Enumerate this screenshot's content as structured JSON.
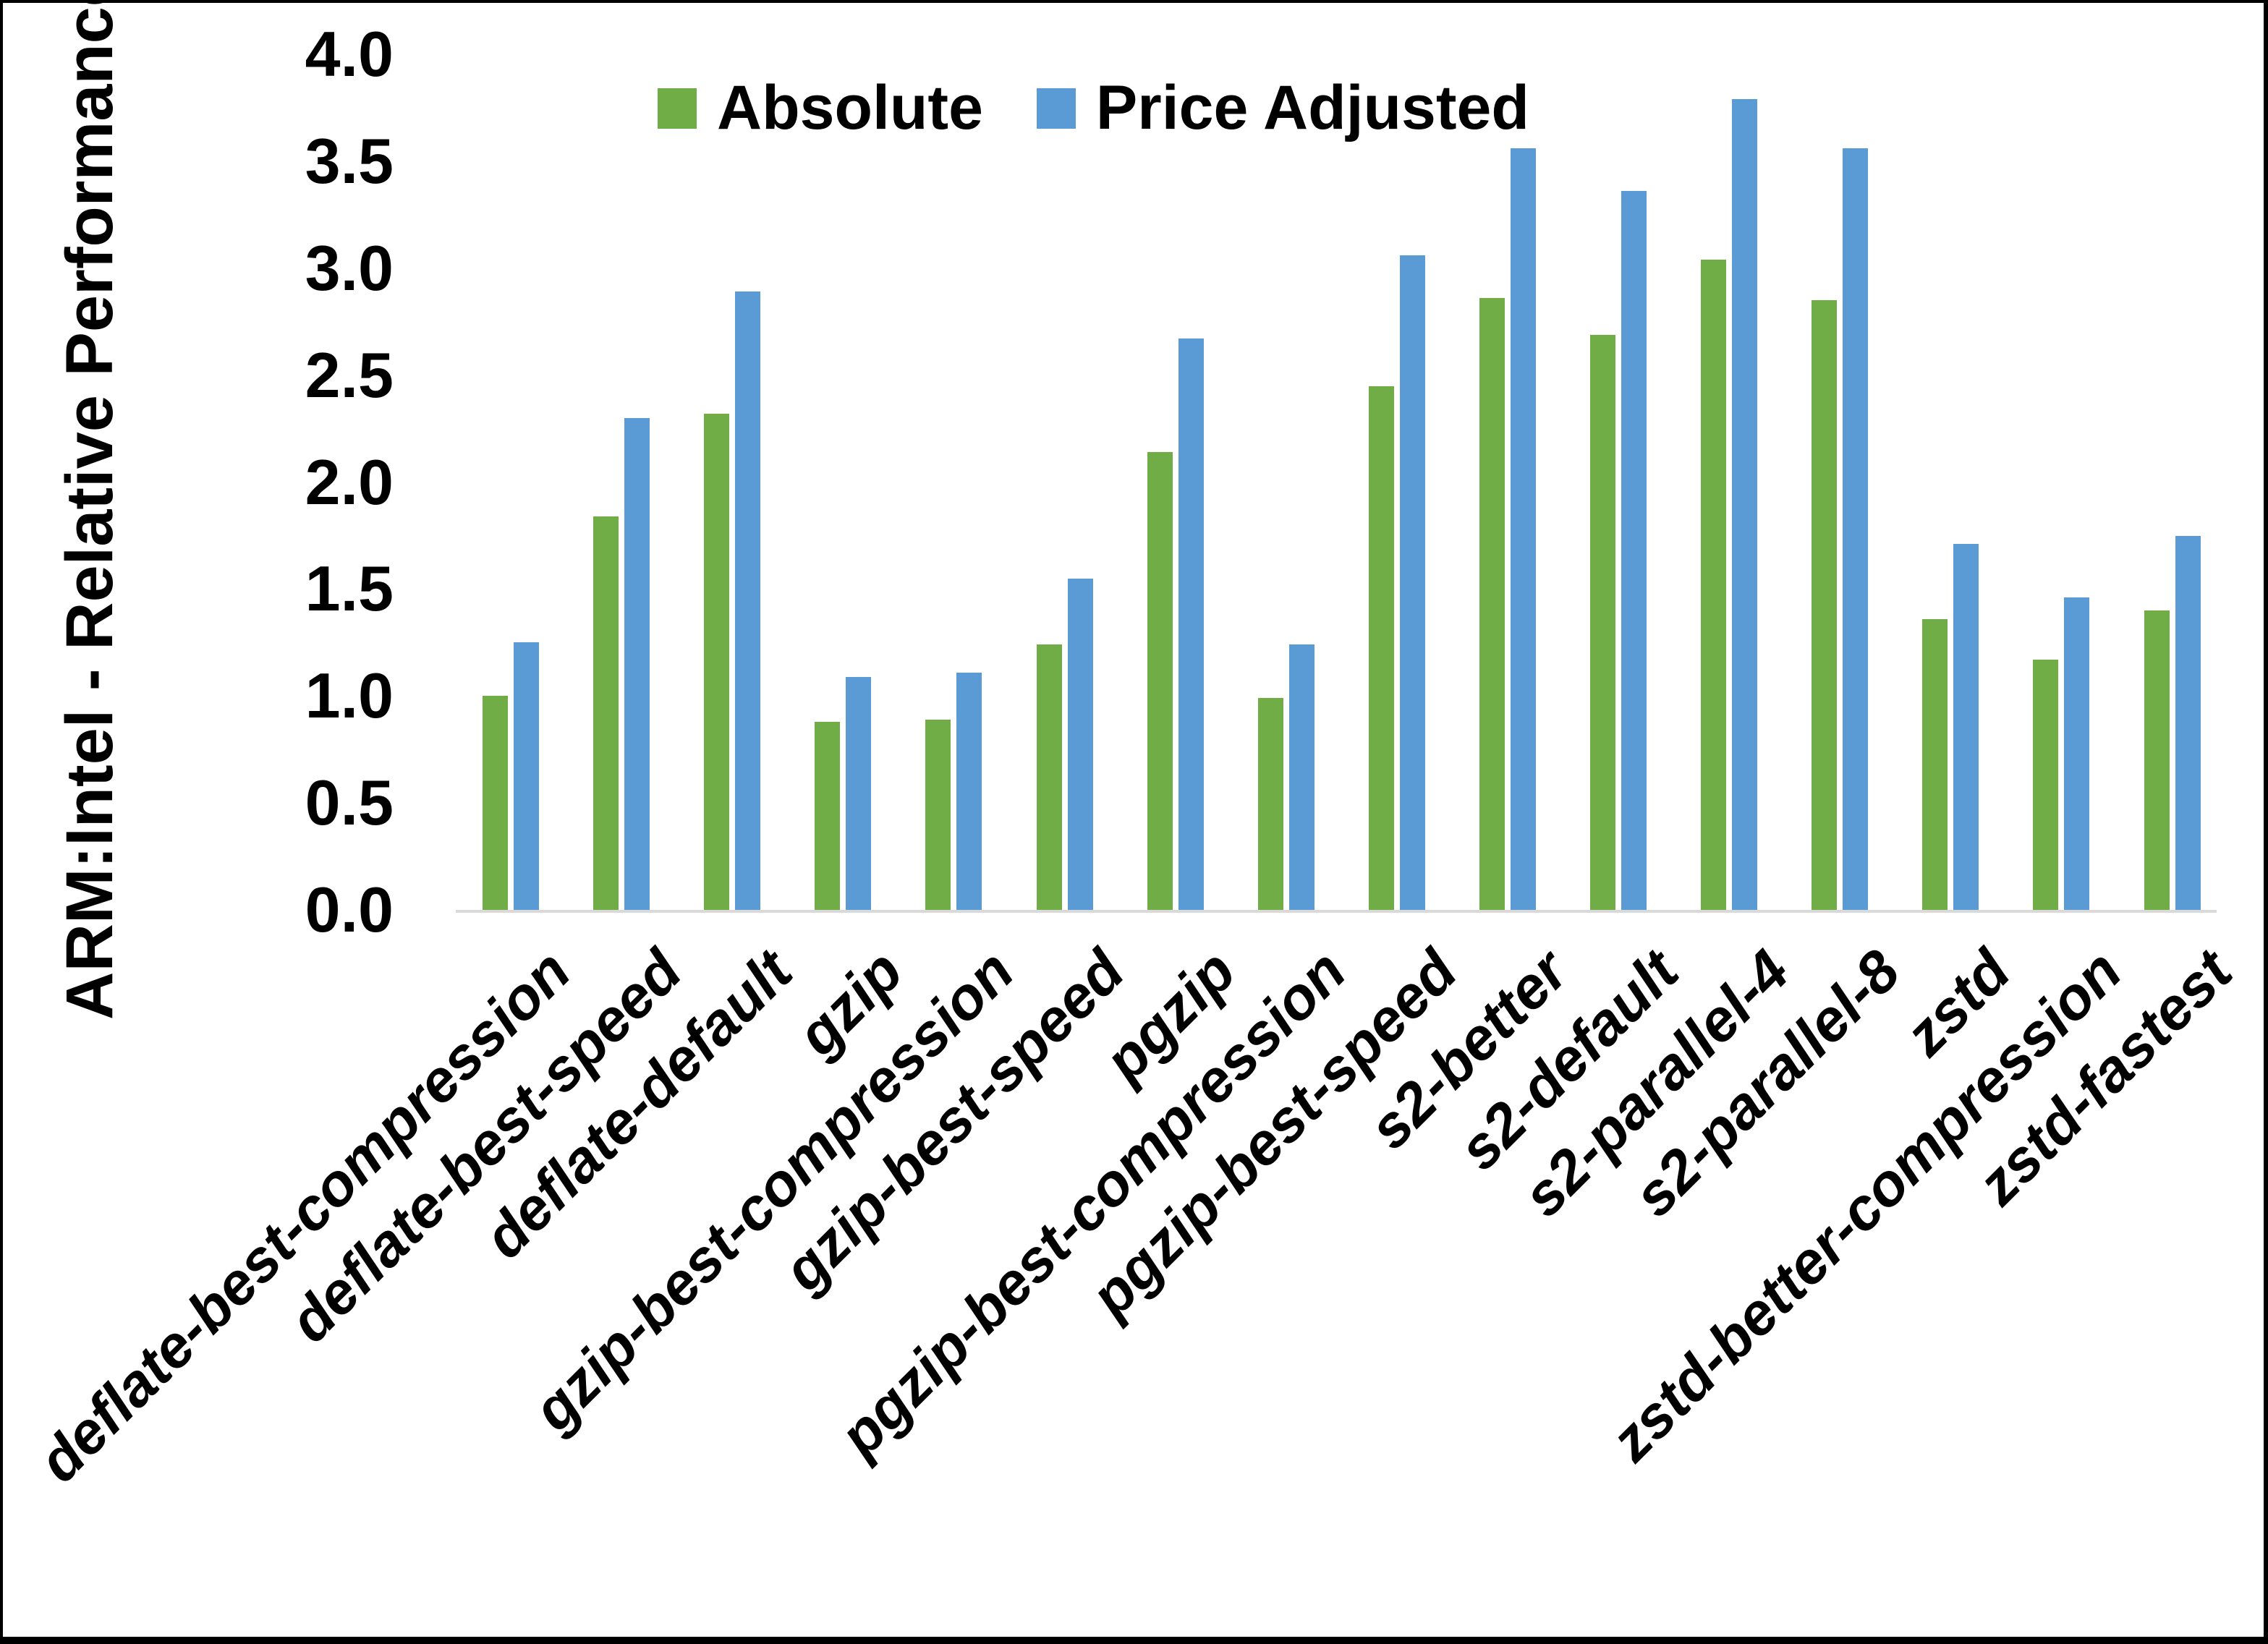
{
  "figure": {
    "y_axis_title": "ARM:Intel - Relative Performance"
  },
  "chart_data": {
    "type": "bar",
    "title": "",
    "xlabel": "",
    "ylabel": "ARM:Intel - Relative Performance",
    "ylim": [
      0.0,
      4.0
    ],
    "ytick_step": 0.5,
    "ytick_labels": [
      "0.0",
      "0.5",
      "1.0",
      "1.5",
      "2.0",
      "2.5",
      "3.0",
      "3.5",
      "4.0"
    ],
    "grid": false,
    "legend_position": "top",
    "categories": [
      "deflate-best-compression",
      "deflate-best-speed",
      "deflate-default",
      "gzip",
      "gzip-best-compression",
      "gzip-best-speed",
      "pgzip",
      "pgzip-best-compression",
      "pgzip-best-speed",
      "s2-better",
      "s2-default",
      "s2-parallel-4",
      "s2-parallel-8",
      "zstd",
      "zstd-better-compression",
      "zstd-fastest"
    ],
    "series": [
      {
        "name": "Absolute",
        "color": "#70AD47",
        "values": [
          1.0,
          1.84,
          2.32,
          0.88,
          0.89,
          1.24,
          2.14,
          0.99,
          2.45,
          2.86,
          2.69,
          3.04,
          2.85,
          1.36,
          1.17,
          1.4
        ]
      },
      {
        "name": "Price Adjusted",
        "color": "#5B9BD5",
        "values": [
          1.25,
          2.3,
          2.89,
          1.09,
          1.11,
          1.55,
          2.67,
          1.24,
          3.06,
          3.56,
          3.36,
          3.79,
          3.56,
          1.71,
          1.46,
          1.75
        ]
      }
    ]
  }
}
